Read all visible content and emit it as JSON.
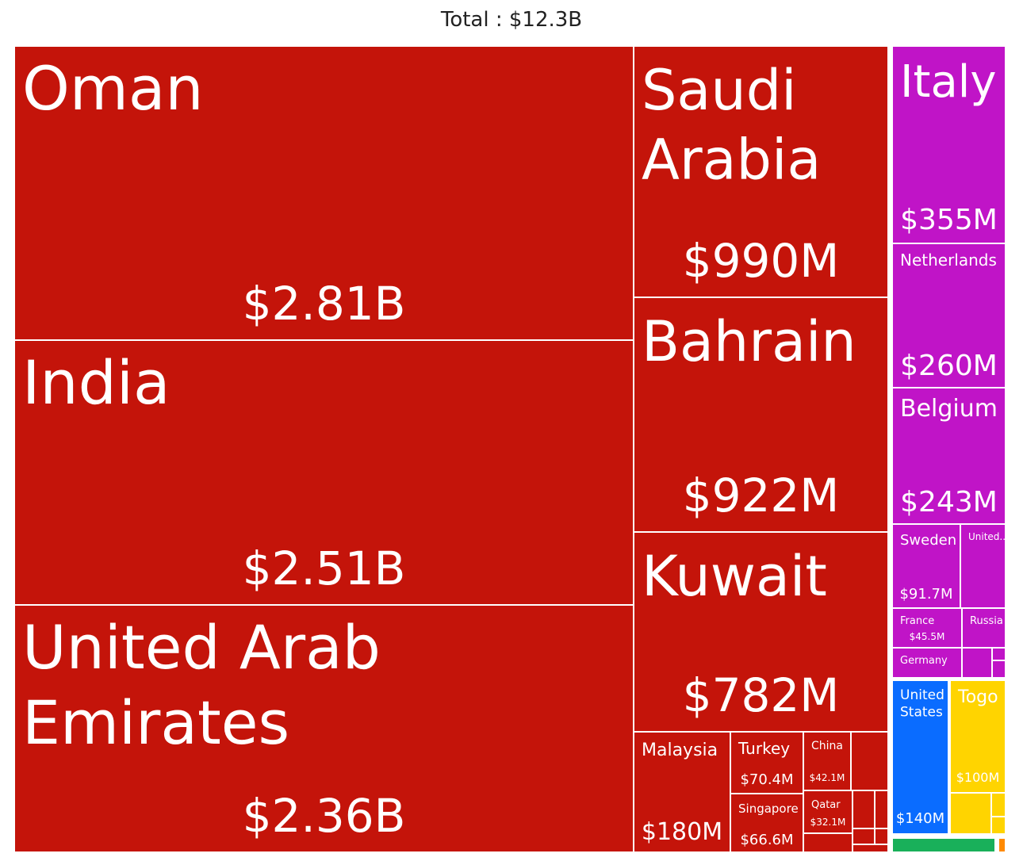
{
  "chart_data": {
    "type": "treemap",
    "title": "Total : $12.3B",
    "colors": {
      "Asia": "#c4140a",
      "Europe": "#c014c7",
      "North America": "#0a6cff",
      "Africa": "#ffd400",
      "South America": "#19b05a",
      "Oceania": "#ff8a00"
    },
    "items": [
      {
        "name": "Oman",
        "label": "Oman",
        "value_label": "$2.81B",
        "value": 2810,
        "group": "Asia"
      },
      {
        "name": "India",
        "label": "India",
        "value_label": "$2.51B",
        "value": 2510,
        "group": "Asia"
      },
      {
        "name": "United Arab Emirates",
        "label": "United Arab Emirates",
        "value_label": "$2.36B",
        "value": 2360,
        "group": "Asia"
      },
      {
        "name": "Saudi Arabia",
        "label": "Saudi Arabia",
        "value_label": "$990M",
        "value": 990,
        "group": "Asia"
      },
      {
        "name": "Bahrain",
        "label": "Bahrain",
        "value_label": "$922M",
        "value": 922,
        "group": "Asia"
      },
      {
        "name": "Kuwait",
        "label": "Kuwait",
        "value_label": "$782M",
        "value": 782,
        "group": "Asia"
      },
      {
        "name": "Malaysia",
        "label": "Malaysia",
        "value_label": "$180M",
        "value": 180,
        "group": "Asia"
      },
      {
        "name": "Turkey",
        "label": "Turkey",
        "value_label": "$70.4M",
        "value": 70.4,
        "group": "Asia"
      },
      {
        "name": "Singapore",
        "label": "Singapore",
        "value_label": "$66.6M",
        "value": 66.6,
        "group": "Asia"
      },
      {
        "name": "China",
        "label": "China",
        "value_label": "$42.1M",
        "value": 42.1,
        "group": "Asia"
      },
      {
        "name": "Qatar",
        "label": "Qatar",
        "value_label": "$32.1M",
        "value": 32.1,
        "group": "Asia"
      },
      {
        "name": "Italy",
        "label": "Italy",
        "value_label": "$355M",
        "value": 355,
        "group": "Europe"
      },
      {
        "name": "Netherlands",
        "label": "Netherlands",
        "value_label": "$260M",
        "value": 260,
        "group": "Europe"
      },
      {
        "name": "Belgium",
        "label": "Belgium",
        "value_label": "$243M",
        "value": 243,
        "group": "Europe"
      },
      {
        "name": "Sweden",
        "label": "Sweden",
        "value_label": "$91.7M",
        "value": 91.7,
        "group": "Europe"
      },
      {
        "name": "United...",
        "label": "United...",
        "value_label": "",
        "value": null,
        "group": "Europe"
      },
      {
        "name": "France",
        "label": "France",
        "value_label": "$45.5M",
        "value": 45.5,
        "group": "Europe"
      },
      {
        "name": "Russia",
        "label": "Russia",
        "value_label": "",
        "value": null,
        "group": "Europe"
      },
      {
        "name": "Germany",
        "label": "Germany",
        "value_label": "",
        "value": null,
        "group": "Europe"
      },
      {
        "name": "United States",
        "label": "United States",
        "value_label": "$140M",
        "value": 140,
        "group": "North America"
      },
      {
        "name": "Togo",
        "label": "Togo",
        "value_label": "$100M",
        "value": 100,
        "group": "Africa"
      }
    ]
  }
}
